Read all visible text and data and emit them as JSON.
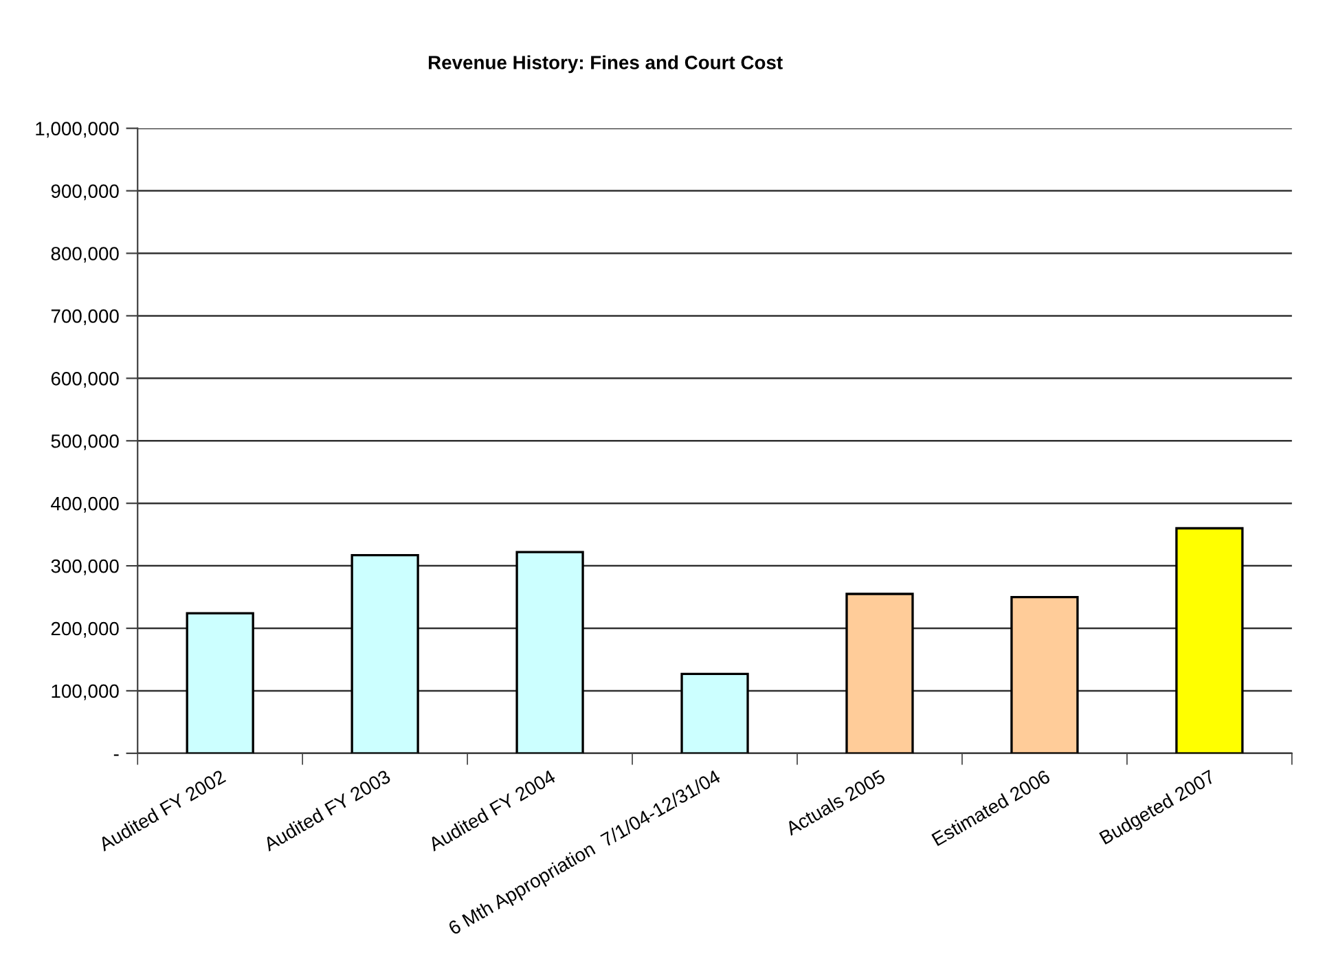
{
  "chart_data": {
    "type": "bar",
    "title": "Revenue History: Fines and Court Cost",
    "categories": [
      "Audited FY 2002",
      "Audited FY 2003",
      "Audited FY 2004",
      "6 Mth Appropriation  7/1/04-12/31/04",
      "Actuals 2005",
      "Estimated 2006",
      "Budgeted 2007"
    ],
    "values": [
      224000,
      317000,
      322000,
      127000,
      255000,
      250000,
      360000
    ],
    "colors": [
      "#ccffff",
      "#ccffff",
      "#ccffff",
      "#ccffff",
      "#ffcc99",
      "#ffcc99",
      "#ffff00"
    ],
    "ylim": [
      0,
      1000000
    ],
    "yticks": [
      {
        "value": 0,
        "label": "-"
      },
      {
        "value": 100000,
        "label": "100,000"
      },
      {
        "value": 200000,
        "label": "200,000"
      },
      {
        "value": 300000,
        "label": "300,000"
      },
      {
        "value": 400000,
        "label": "400,000"
      },
      {
        "value": 500000,
        "label": "500,000"
      },
      {
        "value": 600000,
        "label": "600,000"
      },
      {
        "value": 700000,
        "label": "700,000"
      },
      {
        "value": 800000,
        "label": "800,000"
      },
      {
        "value": 900000,
        "label": "900,000"
      },
      {
        "value": 1000000,
        "label": "1,000,000"
      }
    ],
    "grid": "y",
    "legend": false
  }
}
